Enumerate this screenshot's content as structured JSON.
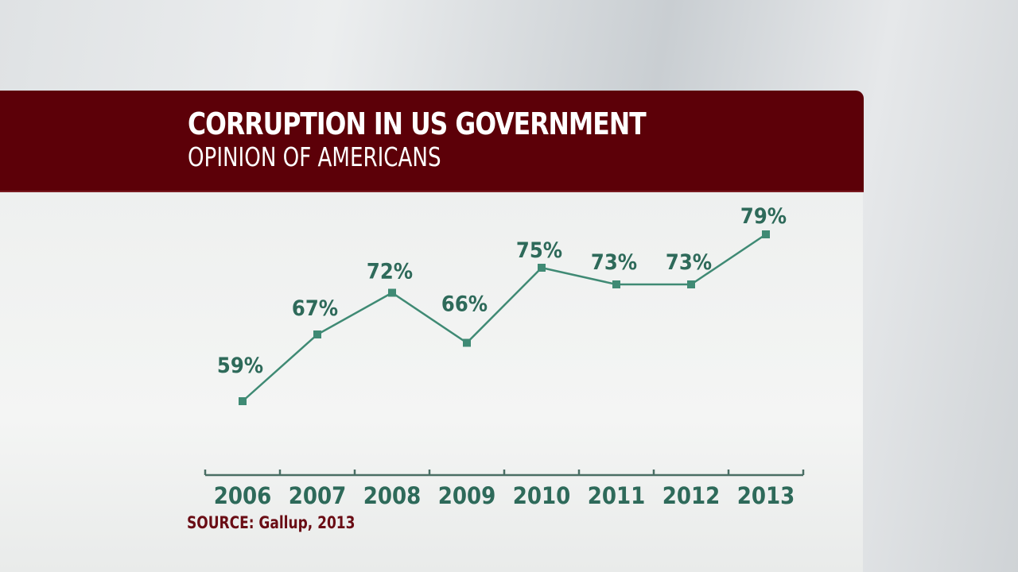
{
  "chart_data": {
    "type": "line",
    "title": "CORRUPTION IN US GOVERNMENT",
    "subtitle": "OPINION OF AMERICANS",
    "categories": [
      "2006",
      "2007",
      "2008",
      "2009",
      "2010",
      "2011",
      "2012",
      "2013"
    ],
    "values": [
      59,
      67,
      72,
      66,
      75,
      73,
      73,
      79
    ],
    "data_labels": [
      "59%",
      "67%",
      "72%",
      "66%",
      "75%",
      "73%",
      "73%",
      "79%"
    ],
    "unit": "%",
    "grid": false,
    "legend": "none",
    "colors": {
      "line": "#3f8a74",
      "text": "#2e6a5a",
      "banner": "#5c0008",
      "source": "#6a0d15"
    }
  },
  "source": "SOURCE: Gallup, 2013"
}
